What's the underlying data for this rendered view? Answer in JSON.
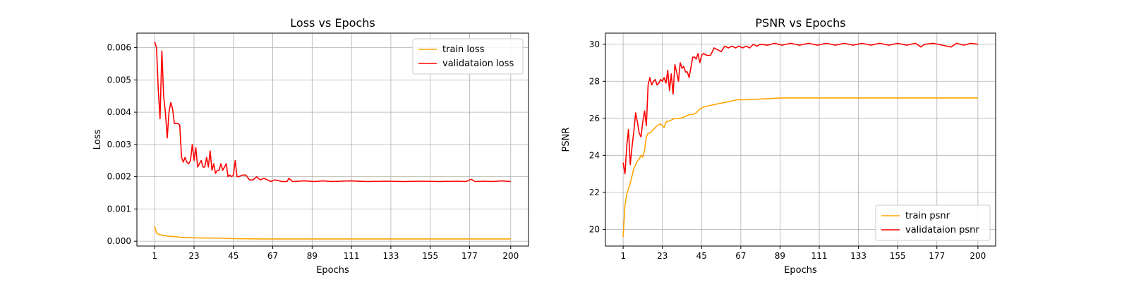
{
  "chart_data": [
    {
      "type": "line",
      "title": "Loss vs Epochs",
      "xlabel": "Epochs",
      "ylabel": "Loss",
      "xlim": [
        -8.95,
        209.95
      ],
      "ylim": [
        -0.00015,
        0.00645
      ],
      "xticks": [
        1,
        23,
        45,
        67,
        89,
        111,
        133,
        155,
        177,
        200
      ],
      "xtick_labels": [
        "1",
        "23",
        "45",
        "67",
        "89",
        "111",
        "133",
        "155",
        "177",
        "200"
      ],
      "yticks": [
        0.0,
        0.001,
        0.002,
        0.003,
        0.004,
        0.005,
        0.006
      ],
      "ytick_labels": [
        "0.000",
        "0.001",
        "0.002",
        "0.003",
        "0.004",
        "0.005",
        "0.006"
      ],
      "grid": true,
      "legend": "top-right",
      "series": [
        {
          "name": "train loss",
          "color": "#ffa500",
          "points": [
            [
              1,
              0.00046
            ],
            [
              2,
              0.00025
            ],
            [
              3,
              0.00022
            ],
            [
              4,
              0.0002
            ],
            [
              6,
              0.00018
            ],
            [
              8,
              0.00016
            ],
            [
              10,
              0.00015
            ],
            [
              13,
              0.00014
            ],
            [
              15,
              0.00012
            ],
            [
              20,
              0.00011
            ],
            [
              25,
              0.0001
            ],
            [
              30,
              0.0001
            ],
            [
              40,
              9e-05
            ],
            [
              45,
              8e-05
            ],
            [
              60,
              7e-05
            ],
            [
              80,
              7e-05
            ],
            [
              100,
              7e-05
            ],
            [
              150,
              7e-05
            ],
            [
              200,
              7e-05
            ]
          ]
        },
        {
          "name": "validataion loss",
          "color": "#ff0000",
          "points": [
            [
              1,
              0.00618
            ],
            [
              2,
              0.006
            ],
            [
              3,
              0.0047
            ],
            [
              4,
              0.0038
            ],
            [
              5,
              0.0059
            ],
            [
              6,
              0.0045
            ],
            [
              7,
              0.004
            ],
            [
              8,
              0.0032
            ],
            [
              9,
              0.004
            ],
            [
              10,
              0.0043
            ],
            [
              11,
              0.0041
            ],
            [
              12,
              0.00365
            ],
            [
              14,
              0.00365
            ],
            [
              15,
              0.0036
            ],
            [
              16,
              0.0026
            ],
            [
              17,
              0.00245
            ],
            [
              18,
              0.0026
            ],
            [
              19,
              0.00245
            ],
            [
              20,
              0.0024
            ],
            [
              21,
              0.0025
            ],
            [
              22,
              0.003
            ],
            [
              23,
              0.0025
            ],
            [
              24,
              0.0029
            ],
            [
              25,
              0.0023
            ],
            [
              26,
              0.0024
            ],
            [
              27,
              0.0025
            ],
            [
              28,
              0.0023
            ],
            [
              29,
              0.0023
            ],
            [
              30,
              0.0026
            ],
            [
              31,
              0.0023
            ],
            [
              32,
              0.0028
            ],
            [
              33,
              0.0022
            ],
            [
              34,
              0.0024
            ],
            [
              35,
              0.0021
            ],
            [
              36,
              0.0022
            ],
            [
              37,
              0.0022
            ],
            [
              38,
              0.0024
            ],
            [
              39,
              0.0022
            ],
            [
              40,
              0.0023
            ],
            [
              41,
              0.0024
            ],
            [
              42,
              0.002
            ],
            [
              43,
              0.00205
            ],
            [
              44,
              0.002
            ],
            [
              45,
              0.00205
            ],
            [
              46,
              0.0025
            ],
            [
              47,
              0.002
            ],
            [
              48,
              0.002
            ],
            [
              50,
              0.00205
            ],
            [
              52,
              0.00205
            ],
            [
              54,
              0.0019
            ],
            [
              56,
              0.0019
            ],
            [
              58,
              0.002
            ],
            [
              60,
              0.0019
            ],
            [
              62,
              0.00195
            ],
            [
              64,
              0.0019
            ],
            [
              66,
              0.00185
            ],
            [
              68,
              0.0019
            ],
            [
              70,
              0.00188
            ],
            [
              72,
              0.00185
            ],
            [
              75,
              0.00185
            ],
            [
              76,
              0.00195
            ],
            [
              78,
              0.00185
            ],
            [
              85,
              0.00187
            ],
            [
              90,
              0.00185
            ],
            [
              95,
              0.00187
            ],
            [
              100,
              0.00185
            ],
            [
              110,
              0.00187
            ],
            [
              120,
              0.00185
            ],
            [
              130,
              0.00186
            ],
            [
              140,
              0.00185
            ],
            [
              150,
              0.00186
            ],
            [
              160,
              0.00185
            ],
            [
              170,
              0.00186
            ],
            [
              175,
              0.00185
            ],
            [
              178,
              0.00192
            ],
            [
              180,
              0.00185
            ],
            [
              185,
              0.00186
            ],
            [
              190,
              0.00185
            ],
            [
              195,
              0.00187
            ],
            [
              200,
              0.00185
            ]
          ]
        }
      ]
    },
    {
      "type": "line",
      "title": "PSNR vs Epochs",
      "xlabel": "Epochs",
      "ylabel": "PSNR",
      "xlim": [
        -8.95,
        209.95
      ],
      "ylim": [
        19.1,
        30.6
      ],
      "xticks": [
        1,
        23,
        45,
        67,
        89,
        111,
        133,
        155,
        177,
        200
      ],
      "xtick_labels": [
        "1",
        "23",
        "45",
        "67",
        "89",
        "111",
        "133",
        "155",
        "177",
        "200"
      ],
      "yticks": [
        20,
        22,
        24,
        26,
        28,
        30
      ],
      "ytick_labels": [
        "20",
        "22",
        "24",
        "26",
        "28",
        "30"
      ],
      "grid": true,
      "legend": "bottom-right",
      "series": [
        {
          "name": "train psnr",
          "color": "#ffa500",
          "points": [
            [
              1,
              19.6
            ],
            [
              2,
              21.3
            ],
            [
              3,
              21.9
            ],
            [
              4,
              22.2
            ],
            [
              5,
              22.5
            ],
            [
              6,
              22.9
            ],
            [
              7,
              23.3
            ],
            [
              8,
              23.5
            ],
            [
              9,
              23.7
            ],
            [
              10,
              23.8
            ],
            [
              11,
              24.0
            ],
            [
              12,
              23.9
            ],
            [
              13,
              24.3
            ],
            [
              14,
              25.0
            ],
            [
              15,
              25.2
            ],
            [
              16,
              25.2
            ],
            [
              18,
              25.4
            ],
            [
              20,
              25.6
            ],
            [
              22,
              25.7
            ],
            [
              24,
              25.5
            ],
            [
              25,
              25.8
            ],
            [
              28,
              25.9
            ],
            [
              30,
              26.0
            ],
            [
              33,
              26.0
            ],
            [
              36,
              26.1
            ],
            [
              38,
              26.2
            ],
            [
              40,
              26.2
            ],
            [
              42,
              26.3
            ],
            [
              44,
              26.5
            ],
            [
              46,
              26.6
            ],
            [
              50,
              26.7
            ],
            [
              55,
              26.8
            ],
            [
              60,
              26.9
            ],
            [
              65,
              27.0
            ],
            [
              70,
              27.0
            ],
            [
              80,
              27.05
            ],
            [
              90,
              27.1
            ],
            [
              110,
              27.1
            ],
            [
              130,
              27.1
            ],
            [
              150,
              27.1
            ],
            [
              170,
              27.1
            ],
            [
              200,
              27.1
            ]
          ]
        },
        {
          "name": "validataion psnr",
          "color": "#ff0000",
          "points": [
            [
              1,
              23.6
            ],
            [
              2,
              23.0
            ],
            [
              3,
              24.5
            ],
            [
              4,
              25.4
            ],
            [
              5,
              23.5
            ],
            [
              6,
              24.5
            ],
            [
              7,
              25.3
            ],
            [
              8,
              26.3
            ],
            [
              9,
              25.8
            ],
            [
              10,
              25.2
            ],
            [
              11,
              25.0
            ],
            [
              12,
              25.8
            ],
            [
              13,
              26.4
            ],
            [
              14,
              25.6
            ],
            [
              15,
              27.8
            ],
            [
              16,
              28.2
            ],
            [
              17,
              27.8
            ],
            [
              18,
              28.0
            ],
            [
              19,
              28.1
            ],
            [
              20,
              27.8
            ],
            [
              21,
              27.9
            ],
            [
              22,
              28.1
            ],
            [
              23,
              28.0
            ],
            [
              24,
              28.2
            ],
            [
              25,
              27.9
            ],
            [
              26,
              28.6
            ],
            [
              27,
              27.5
            ],
            [
              28,
              28.4
            ],
            [
              29,
              27.3
            ],
            [
              30,
              28.9
            ],
            [
              31,
              28.5
            ],
            [
              32,
              28.0
            ],
            [
              33,
              29.0
            ],
            [
              34,
              28.7
            ],
            [
              35,
              28.8
            ],
            [
              36,
              28.5
            ],
            [
              37,
              28.5
            ],
            [
              38,
              28.2
            ],
            [
              40,
              29.3
            ],
            [
              41,
              29.3
            ],
            [
              42,
              29.2
            ],
            [
              43,
              29.5
            ],
            [
              44,
              29.0
            ],
            [
              45,
              29.4
            ],
            [
              46,
              29.5
            ],
            [
              48,
              29.4
            ],
            [
              50,
              29.4
            ],
            [
              52,
              29.8
            ],
            [
              54,
              29.7
            ],
            [
              56,
              29.6
            ],
            [
              58,
              29.9
            ],
            [
              60,
              29.8
            ],
            [
              62,
              29.9
            ],
            [
              64,
              29.8
            ],
            [
              66,
              29.9
            ],
            [
              68,
              29.8
            ],
            [
              70,
              29.9
            ],
            [
              72,
              29.8
            ],
            [
              74,
              30.0
            ],
            [
              76,
              29.9
            ],
            [
              78,
              30.0
            ],
            [
              82,
              29.95
            ],
            [
              86,
              30.05
            ],
            [
              90,
              29.95
            ],
            [
              95,
              30.05
            ],
            [
              100,
              29.95
            ],
            [
              105,
              30.05
            ],
            [
              110,
              29.95
            ],
            [
              115,
              30.05
            ],
            [
              120,
              29.95
            ],
            [
              125,
              30.05
            ],
            [
              130,
              29.95
            ],
            [
              135,
              30.05
            ],
            [
              140,
              29.95
            ],
            [
              145,
              30.05
            ],
            [
              150,
              29.95
            ],
            [
              155,
              30.05
            ],
            [
              160,
              29.95
            ],
            [
              165,
              30.05
            ],
            [
              168,
              29.85
            ],
            [
              170,
              30.0
            ],
            [
              175,
              30.05
            ],
            [
              180,
              29.95
            ],
            [
              185,
              29.85
            ],
            [
              188,
              30.05
            ],
            [
              192,
              29.95
            ],
            [
              196,
              30.05
            ],
            [
              200,
              30.0
            ]
          ]
        }
      ]
    }
  ]
}
